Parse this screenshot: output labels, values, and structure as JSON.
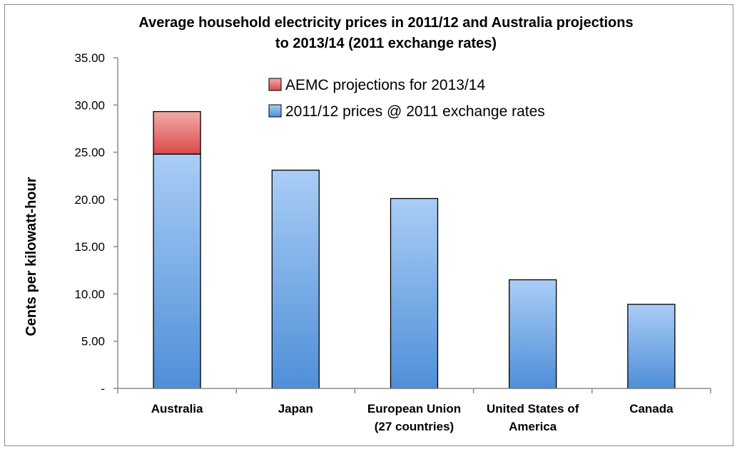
{
  "chart_data": {
    "type": "bar",
    "stacked": true,
    "title": "Average household electricity prices in 2011/12 and Australia projections to 2013/14 (2011 exchange rates)",
    "title_lines": [
      "Average household electricity prices in 2011/12 and Australia projections",
      "to 2013/14 (2011 exchange rates)"
    ],
    "ylabel": "Cents per kilowatt-hour",
    "xlabel": "",
    "ylim": [
      0,
      35
    ],
    "yticks": [
      0,
      5,
      10,
      15,
      20,
      25,
      30,
      35
    ],
    "ytick_labels": [
      "-",
      "5.00",
      "10.00",
      "15.00",
      "20.00",
      "25.00",
      "30.00",
      "35.00"
    ],
    "categories": [
      "Australia",
      "Japan",
      "European Union (27 countries)",
      "United States of America",
      "Canada"
    ],
    "category_lines": [
      [
        "Australia"
      ],
      [
        "Japan"
      ],
      [
        "European Union",
        "(27 countries)"
      ],
      [
        "United States of",
        "America"
      ],
      [
        "Canada"
      ]
    ],
    "series": [
      {
        "name": "2011/12 prices @ 2011 exchange rates",
        "values": [
          24.8,
          23.1,
          20.1,
          11.5,
          8.9
        ],
        "color": "#4f8fd8"
      },
      {
        "name": "AEMC projections for 2013/14",
        "values": [
          4.5,
          0,
          0,
          0,
          0
        ],
        "color": "#e05a5a"
      }
    ],
    "legend_order": [
      "AEMC projections for 2013/14",
      "2011/12 prices @ 2011 exchange rates"
    ],
    "legend_position": "top-center",
    "grid": false
  }
}
